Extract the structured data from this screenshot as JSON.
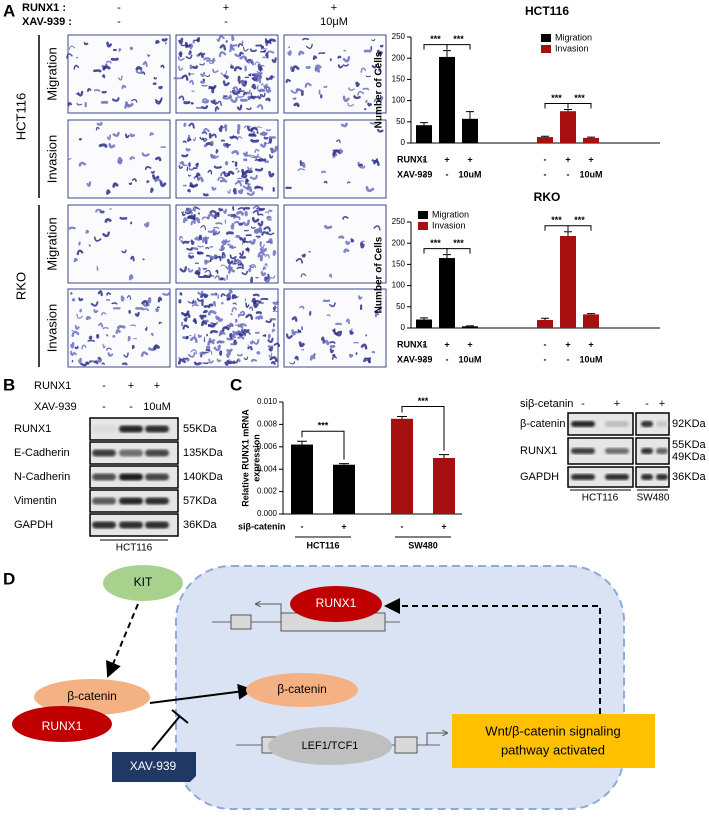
{
  "panel_a": {
    "label": "A",
    "treatment_rows": [
      {
        "name": "RUNX1 :",
        "levels": [
          "-",
          "+",
          "+"
        ]
      },
      {
        "name": "XAV-939 :",
        "levels": [
          "-",
          "-",
          "10μM"
        ]
      }
    ],
    "cell_lines": [
      {
        "name": "HCT116",
        "assays": [
          "Migration",
          "Invasion"
        ]
      },
      {
        "name": "RKO",
        "assays": [
          "Migration",
          "Invasion"
        ]
      }
    ]
  },
  "chart_data": [
    {
      "type": "grouped_bar",
      "title": "HCT116",
      "ylabel": "Number of Cells",
      "ylim": [
        0,
        250
      ],
      "yticks": [
        0,
        50,
        100,
        150,
        200,
        250
      ],
      "series": [
        {
          "name": "Migration",
          "color": "#000000",
          "values": [
            42,
            203,
            57
          ],
          "errors": [
            6,
            15,
            17
          ],
          "significance": [
            "***",
            "***"
          ]
        },
        {
          "name": "Invasion",
          "color": "#a50f0f",
          "values": [
            14,
            75,
            12
          ],
          "errors": [
            2,
            4,
            2
          ],
          "significance": [
            "***",
            "***"
          ]
        }
      ],
      "condition_rows": [
        {
          "name": "RUNX1",
          "levels": [
            "-",
            "+",
            "+",
            "-",
            "+",
            "+"
          ]
        },
        {
          "name": "XAV-939",
          "levels": [
            "-",
            "-",
            "10uM",
            "-",
            "-",
            "10uM"
          ]
        }
      ]
    },
    {
      "type": "grouped_bar",
      "title": "RKO",
      "ylabel": "Number of Cells",
      "ylim": [
        0,
        250
      ],
      "yticks": [
        0,
        50,
        100,
        150,
        200,
        250
      ],
      "series": [
        {
          "name": "Migration",
          "color": "#000000",
          "values": [
            20,
            165,
            4
          ],
          "errors": [
            4,
            8,
            1
          ],
          "significance": [
            "***",
            "***"
          ]
        },
        {
          "name": "Invasion",
          "color": "#a50f0f",
          "values": [
            19,
            217,
            32
          ],
          "errors": [
            4,
            10,
            2
          ],
          "significance": [
            "***",
            "***"
          ]
        }
      ],
      "condition_rows": [
        {
          "name": "RUNX1",
          "levels": [
            "-",
            "+",
            "+",
            "-",
            "+",
            "+"
          ]
        },
        {
          "name": "XAV-939",
          "levels": [
            "-",
            "-",
            "10uM",
            "-",
            "-",
            "10uM"
          ]
        }
      ]
    },
    {
      "type": "bar",
      "ylabel": [
        "Relative RUNX1 mRNA",
        "expression"
      ],
      "ylim": [
        0,
        0.01
      ],
      "yticks": [
        {
          "value": 0,
          "label": "0.000"
        },
        {
          "value": 0.002,
          "label": "0.002"
        },
        {
          "value": 0.004,
          "label": "0.004"
        },
        {
          "value": 0.006,
          "label": "0.006"
        },
        {
          "value": 0.008,
          "label": "0.008"
        },
        {
          "value": 0.01,
          "label": "0.010"
        }
      ],
      "values": [
        0.0062,
        0.0044,
        0.0085,
        0.005
      ],
      "errors": [
        0.0003,
        0.0001,
        0.0002,
        0.0003
      ],
      "colors": [
        "#000000",
        "#000000",
        "#a50f0f",
        "#a50f0f"
      ],
      "condition_rows": [
        {
          "name": "siβ-catenin",
          "levels": [
            "-",
            "+",
            "-",
            "+"
          ]
        }
      ],
      "groups": [
        "HCT116",
        "SW480"
      ],
      "significance": [
        "***",
        "***"
      ]
    }
  ],
  "panel_b": {
    "label": "B",
    "treatment_rows": [
      {
        "name": "RUNX1",
        "levels": [
          "-",
          "+",
          "+"
        ]
      },
      {
        "name": "XAV-939",
        "levels": [
          "-",
          "-",
          "10uM"
        ]
      }
    ],
    "blots": [
      {
        "protein": "RUNX1",
        "size": "55KDa"
      },
      {
        "protein": "E-Cadherin",
        "size": "135KDa"
      },
      {
        "protein": "N-Cadherin",
        "size": "140KDa"
      },
      {
        "protein": "Vimentin",
        "size": "57KDa"
      },
      {
        "protein": "GAPDH",
        "size": "36KDa"
      }
    ],
    "cell_line": "HCT116"
  },
  "panel_c": {
    "label": "C",
    "treatment": {
      "name": "siβ-cetanin",
      "levels": [
        "-",
        "+",
        "-",
        "+"
      ]
    },
    "blots": [
      {
        "protein": "β-catenin",
        "sizes": [
          "92KDa"
        ]
      },
      {
        "protein": "RUNX1",
        "sizes": [
          "55KDa",
          "49KDa"
        ]
      },
      {
        "protein": "GAPDH",
        "sizes": [
          "36KDa"
        ]
      }
    ],
    "cell_lines": [
      "HCT116",
      "SW480"
    ]
  },
  "panel_d": {
    "label": "D",
    "nodes": {
      "kit": "KIT",
      "runx1_nucleus": "RUNX1",
      "beta_catenin_cytoplasm": "β-catenin",
      "runx1_cytoplasm": "RUNX1",
      "beta_catenin_nucleus": "β-catenin",
      "lef1_tcf1": "LEF1/TCF1",
      "xav939": "XAV-939",
      "outcome": [
        "Wnt/β-catenin signaling",
        "pathway activated"
      ]
    }
  }
}
